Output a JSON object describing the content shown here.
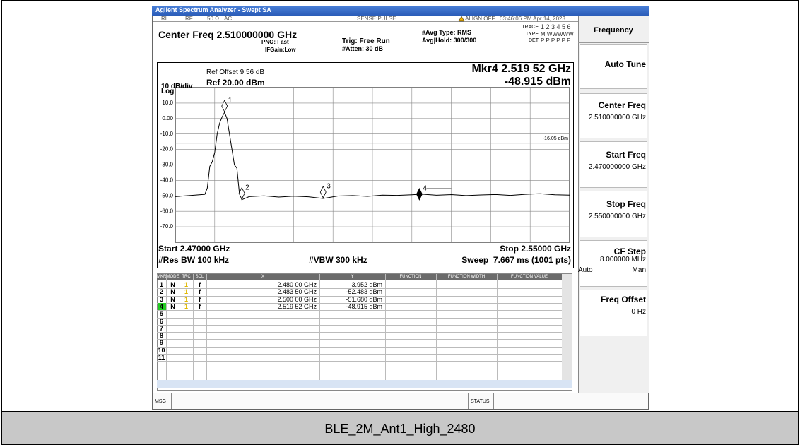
{
  "window_title": "Agilent Spectrum Analyzer - Swept SA",
  "status_row": {
    "rl": "RL",
    "rf": "RF",
    "impedance": "50 Ω",
    "coupling": "AC",
    "sense": "SENSE:PULSE",
    "align": "ALIGN OFF",
    "timestamp": "03:46:06 PM Apr 14, 2023"
  },
  "settings": {
    "center_freq": "Center Freq 2.510000000 GHz",
    "pno": "PNO: Fast",
    "ifgain": "IFGain:Low",
    "trig": "Trig: Free Run",
    "atten": "#Atten: 30 dB",
    "avg_type": "#Avg Type: RMS",
    "avg_hold": "Avg|Hold: 300/300",
    "trace_label": "TRACE",
    "trace_values": "1 2 3 4 5 6",
    "type_label": "TYPE",
    "type_values": "M WWWWW",
    "det_label": "DET",
    "det_values": "P P P P P P"
  },
  "graph": {
    "ref_offset": "Ref Offset 9.56 dB",
    "scale": "10 dB/div",
    "ref_level": "Ref 20.00 dBm",
    "scale_type": "Log",
    "marker_freq": "Mkr4 2.519 52 GHz",
    "marker_value": "-48.915 dBm",
    "start": "Start 2.47000 GHz",
    "stop": "Stop 2.55000 GHz",
    "rbw": "#Res BW 100 kHz",
    "vbw": "#VBW 300 kHz",
    "sweep": "Sweep  7.667 ms (1001 pts)"
  },
  "chart_data": {
    "type": "line",
    "color": "#000000",
    "xlim": [
      2.47,
      2.55
    ],
    "ylim": [
      -80,
      20
    ],
    "yticks": [
      {
        "value": 10,
        "label": "10.0"
      },
      {
        "value": 0,
        "label": "0.00"
      },
      {
        "value": -10,
        "label": "-10.0"
      },
      {
        "value": -20,
        "label": "-20.0"
      },
      {
        "value": -30,
        "label": "-30.0"
      },
      {
        "value": -40,
        "label": "-40.0"
      },
      {
        "value": -50,
        "label": "-50.0"
      },
      {
        "value": -60,
        "label": "-60.0"
      },
      {
        "value": -70,
        "label": "-70.0"
      }
    ],
    "grid": true,
    "display_line": {
      "value": -16.05,
      "label": "-16.05 dBm"
    },
    "x": [
      2.47,
      2.472,
      2.474,
      2.476,
      2.4765,
      2.477,
      2.4775,
      2.478,
      2.4785,
      2.479,
      2.4795,
      2.48,
      2.4805,
      2.481,
      2.4815,
      2.482,
      2.4825,
      2.483,
      2.4835,
      2.485,
      2.488,
      2.491,
      2.494,
      2.497,
      2.5,
      2.503,
      2.506,
      2.509,
      2.512,
      2.515,
      2.518,
      2.52,
      2.523,
      2.526,
      2.529,
      2.532,
      2.535,
      2.538,
      2.541,
      2.544,
      2.547,
      2.55
    ],
    "values": [
      -50.5,
      -50,
      -49.5,
      -49,
      -45,
      -31,
      -28,
      -22,
      -10,
      -3,
      1,
      4,
      0,
      -10,
      -20,
      -30,
      -32,
      -48,
      -52.5,
      -50.5,
      -50,
      -50.8,
      -50.2,
      -50.6,
      -51.7,
      -50.1,
      -49.8,
      -50.3,
      -49.5,
      -49.7,
      -49.3,
      -48.9,
      -49.6,
      -49.2,
      -49.8,
      -49.4,
      -49.1,
      -49.7,
      -49.0,
      -48.6,
      -49.3,
      -49.5
    ],
    "markers": [
      {
        "label": "1",
        "x": 2.48,
        "y": 3.952
      },
      {
        "label": "2",
        "x": 2.4835,
        "y": -52.483
      },
      {
        "label": "3",
        "x": 2.5,
        "y": -51.68
      },
      {
        "label": "4",
        "x": 2.51952,
        "y": -48.915
      }
    ]
  },
  "marker_table": {
    "headers": [
      "MKR",
      "MODE",
      "TRC",
      "SCL",
      "X",
      "Y",
      "FUNCTION",
      "FUNCTION WIDTH",
      "FUNCTION VALUE"
    ],
    "rows": [
      [
        "1",
        "N",
        "1",
        "f",
        "2.480 00 GHz",
        "3.952 dBm"
      ],
      [
        "2",
        "N",
        "1",
        "f",
        "2.483 50 GHz",
        "-52.483 dBm"
      ],
      [
        "3",
        "N",
        "1",
        "f",
        "2.500 00 GHz",
        "-51.680 dBm"
      ],
      [
        "4",
        "N",
        "1",
        "f",
        "2.519 52 GHz",
        "-48.915 dBm"
      ],
      [
        "5"
      ],
      [
        "6"
      ],
      [
        "7"
      ],
      [
        "8"
      ],
      [
        "9"
      ],
      [
        "10"
      ],
      [
        "11"
      ]
    ]
  },
  "softkeys": {
    "menu": "Frequency",
    "keys": [
      {
        "label": "Auto Tune"
      },
      {
        "label": "Center Freq",
        "value": "2.510000000 GHz"
      },
      {
        "label": "Start Freq",
        "value": "2.470000000 GHz"
      },
      {
        "label": "Stop Freq",
        "value": "2.550000000 GHz"
      },
      {
        "label": "CF Step",
        "value": "8.000000 MHz",
        "options": [
          "Auto",
          "Man"
        ]
      },
      {
        "label": "Freq Offset",
        "value": "0 Hz"
      }
    ]
  },
  "status_bar": {
    "msg": "MSG",
    "status": "STATUS"
  },
  "caption": "BLE_2M_Ant1_High_2480"
}
